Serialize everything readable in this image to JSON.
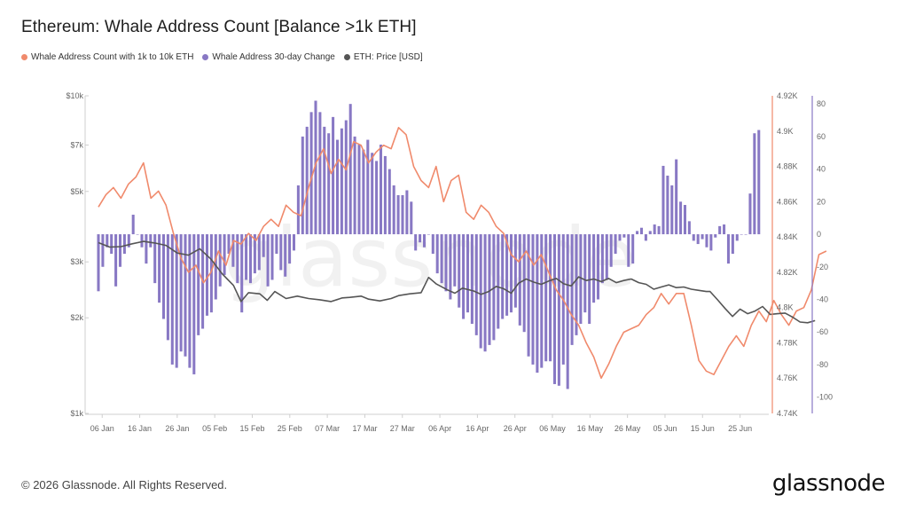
{
  "header": {
    "title": "Ethereum: Whale Address Count [Balance >1k ETH]"
  },
  "legend": [
    {
      "label": "Whale Address Count with 1k to 10k ETH",
      "color": "#f08a6c"
    },
    {
      "label": "Whale Address 30-day Change",
      "color": "#8878c4"
    },
    {
      "label": "ETH: Price [USD]",
      "color": "#555555"
    }
  ],
  "watermark": "glassnode",
  "footer": {
    "copyright": "© 2026 Glassnode. All Rights Reserved.",
    "brand": "glassnode"
  },
  "colors": {
    "whale_count": "#f08a6c",
    "change_bars": "#8878c4",
    "price": "#555555",
    "right_axis_line": "#f08a6c",
    "far_right_axis_line": "#8878c4"
  },
  "chart_data": {
    "type": "line",
    "x_ticks": [
      "06 Jan",
      "16 Jan",
      "26 Jan",
      "05 Feb",
      "15 Feb",
      "25 Feb",
      "07 Mar",
      "17 Mar",
      "27 Mar",
      "06 Apr",
      "16 Apr",
      "26 Apr",
      "06 May",
      "16 May",
      "26 May",
      "05 Jun",
      "15 Jun",
      "25 Jun"
    ],
    "x_start": "2026-01-05",
    "days": 177,
    "axes": {
      "price": {
        "scale": "log",
        "range": [
          1000,
          10000
        ],
        "ticks": [
          "$1k",
          "$2k",
          "$3k",
          "$5k",
          "$7k",
          "$10k"
        ],
        "tick_values": [
          1000,
          2000,
          3000,
          5000,
          7000,
          10000
        ]
      },
      "whale_count": {
        "range": [
          4740,
          4920
        ],
        "ticks": [
          "4.74K",
          "4.76K",
          "4.78K",
          "4.8K",
          "4.82K",
          "4.84K",
          "4.86K",
          "4.88K",
          "4.9K",
          "4.92K"
        ],
        "tick_values": [
          4740,
          4760,
          4780,
          4800,
          4820,
          4840,
          4860,
          4880,
          4900,
          4920
        ]
      },
      "change": {
        "range": [
          -110,
          85
        ],
        "ticks": [
          "80",
          "60",
          "40",
          "20",
          "0",
          "-20",
          "-40",
          "-60",
          "-80",
          "-100"
        ],
        "tick_values": [
          80,
          60,
          40,
          20,
          0,
          -20,
          -40,
          -60,
          -80,
          -100
        ]
      }
    },
    "series": [
      {
        "name": "Whale Address Count with 1k to 10k ETH",
        "axis": "whale_count",
        "points": [
          [
            0,
            4857
          ],
          [
            2,
            4864
          ],
          [
            4,
            4868
          ],
          [
            6,
            4862
          ],
          [
            8,
            4870
          ],
          [
            10,
            4874
          ],
          [
            12,
            4882
          ],
          [
            14,
            4862
          ],
          [
            16,
            4866
          ],
          [
            18,
            4858
          ],
          [
            20,
            4842
          ],
          [
            22,
            4828
          ],
          [
            24,
            4820
          ],
          [
            26,
            4824
          ],
          [
            28,
            4814
          ],
          [
            30,
            4820
          ],
          [
            32,
            4832
          ],
          [
            34,
            4824
          ],
          [
            36,
            4838
          ],
          [
            38,
            4836
          ],
          [
            40,
            4842
          ],
          [
            42,
            4838
          ],
          [
            44,
            4846
          ],
          [
            46,
            4850
          ],
          [
            48,
            4846
          ],
          [
            50,
            4858
          ],
          [
            52,
            4854
          ],
          [
            54,
            4852
          ],
          [
            56,
            4868
          ],
          [
            58,
            4882
          ],
          [
            60,
            4890
          ],
          [
            62,
            4876
          ],
          [
            64,
            4884
          ],
          [
            66,
            4878
          ],
          [
            68,
            4894
          ],
          [
            70,
            4892
          ],
          [
            72,
            4882
          ],
          [
            74,
            4888
          ],
          [
            76,
            4892
          ],
          [
            78,
            4890
          ],
          [
            80,
            4902
          ],
          [
            82,
            4898
          ],
          [
            84,
            4880
          ],
          [
            86,
            4872
          ],
          [
            88,
            4868
          ],
          [
            90,
            4880
          ],
          [
            92,
            4860
          ],
          [
            94,
            4872
          ],
          [
            96,
            4875
          ],
          [
            98,
            4854
          ],
          [
            100,
            4850
          ],
          [
            102,
            4858
          ],
          [
            104,
            4854
          ],
          [
            106,
            4846
          ],
          [
            108,
            4842
          ],
          [
            110,
            4830
          ],
          [
            112,
            4826
          ],
          [
            114,
            4832
          ],
          [
            116,
            4824
          ],
          [
            118,
            4830
          ],
          [
            120,
            4820
          ],
          [
            122,
            4810
          ],
          [
            124,
            4804
          ],
          [
            126,
            4796
          ],
          [
            128,
            4790
          ],
          [
            130,
            4780
          ],
          [
            132,
            4772
          ],
          [
            134,
            4760
          ],
          [
            136,
            4768
          ],
          [
            138,
            4778
          ],
          [
            140,
            4786
          ],
          [
            142,
            4788
          ],
          [
            144,
            4790
          ],
          [
            146,
            4796
          ],
          [
            148,
            4800
          ],
          [
            150,
            4808
          ],
          [
            152,
            4802
          ],
          [
            154,
            4808
          ],
          [
            156,
            4808
          ],
          [
            158,
            4790
          ],
          [
            160,
            4770
          ],
          [
            162,
            4764
          ],
          [
            164,
            4762
          ],
          [
            166,
            4770
          ],
          [
            168,
            4778
          ],
          [
            170,
            4784
          ],
          [
            172,
            4778
          ],
          [
            174,
            4790
          ],
          [
            176,
            4798
          ],
          [
            178,
            4792
          ],
          [
            180,
            4804
          ],
          [
            182,
            4796
          ],
          [
            184,
            4790
          ],
          [
            186,
            4798
          ],
          [
            188,
            4800
          ],
          [
            190,
            4810
          ],
          [
            192,
            4830
          ],
          [
            194,
            4832
          ]
        ]
      },
      {
        "name": "Whale Address 30-day Change",
        "axis": "change",
        "type": "bar",
        "values": [
          -35,
          -20,
          -8,
          -12,
          -32,
          -20,
          -12,
          -8,
          12,
          0,
          -8,
          -18,
          -8,
          -30,
          -42,
          -52,
          -65,
          -80,
          -82,
          -72,
          -75,
          -82,
          -86,
          -62,
          -58,
          -50,
          -48,
          -40,
          -32,
          -25,
          -12,
          -20,
          -30,
          -48,
          -28,
          -30,
          -24,
          -22,
          -14,
          -32,
          -28,
          -12,
          -22,
          -26,
          -18,
          -10,
          30,
          60,
          66,
          75,
          82,
          75,
          66,
          62,
          72,
          58,
          65,
          70,
          80,
          60,
          55,
          52,
          58,
          50,
          45,
          55,
          48,
          40,
          30,
          24,
          24,
          27,
          20,
          -10,
          -5,
          -8,
          0,
          -12,
          -24,
          -30,
          -35,
          -40,
          -32,
          -45,
          -52,
          -48,
          -55,
          -62,
          -70,
          -72,
          -68,
          -65,
          -58,
          -52,
          -50,
          -48,
          -45,
          -56,
          -60,
          -75,
          -80,
          -85,
          -82,
          -78,
          -78,
          -92,
          -93,
          -80,
          -95,
          -68,
          -62,
          -55,
          -48,
          -55,
          -42,
          -40,
          -30,
          -28,
          -20,
          -12,
          -4,
          -2,
          -20,
          -18,
          2,
          4,
          -4,
          2,
          6,
          5,
          42,
          36,
          30,
          46,
          20,
          18,
          8,
          -4,
          -6,
          -3,
          -8,
          -10,
          -2,
          5,
          6,
          -18,
          -12,
          -4,
          0,
          0,
          25,
          62,
          64
        ],
        "series_note": ""
      },
      {
        "name": "ETH: Price [USD]",
        "axis": "price",
        "points": [
          [
            0,
            3450
          ],
          [
            3,
            3340
          ],
          [
            6,
            3350
          ],
          [
            9,
            3420
          ],
          [
            12,
            3480
          ],
          [
            15,
            3440
          ],
          [
            18,
            3380
          ],
          [
            21,
            3200
          ],
          [
            24,
            3150
          ],
          [
            27,
            3300
          ],
          [
            30,
            3060
          ],
          [
            33,
            2750
          ],
          [
            36,
            2530
          ],
          [
            38,
            2250
          ],
          [
            40,
            2400
          ],
          [
            43,
            2380
          ],
          [
            45,
            2270
          ],
          [
            47,
            2420
          ],
          [
            50,
            2300
          ],
          [
            53,
            2340
          ],
          [
            56,
            2300
          ],
          [
            59,
            2280
          ],
          [
            62,
            2250
          ],
          [
            65,
            2310
          ],
          [
            67,
            2320
          ],
          [
            70,
            2340
          ],
          [
            72,
            2290
          ],
          [
            75,
            2260
          ],
          [
            78,
            2300
          ],
          [
            80,
            2350
          ],
          [
            83,
            2380
          ],
          [
            86,
            2400
          ],
          [
            88,
            2680
          ],
          [
            90,
            2560
          ],
          [
            93,
            2450
          ],
          [
            95,
            2390
          ],
          [
            97,
            2480
          ],
          [
            100,
            2430
          ],
          [
            102,
            2370
          ],
          [
            104,
            2420
          ],
          [
            106,
            2510
          ],
          [
            108,
            2470
          ],
          [
            110,
            2390
          ],
          [
            112,
            2570
          ],
          [
            114,
            2650
          ],
          [
            116,
            2590
          ],
          [
            118,
            2550
          ],
          [
            120,
            2610
          ],
          [
            122,
            2660
          ],
          [
            124,
            2560
          ],
          [
            126,
            2520
          ],
          [
            128,
            2690
          ],
          [
            130,
            2620
          ],
          [
            132,
            2650
          ],
          [
            134,
            2600
          ],
          [
            136,
            2660
          ],
          [
            138,
            2580
          ],
          [
            140,
            2620
          ],
          [
            142,
            2650
          ],
          [
            144,
            2580
          ],
          [
            146,
            2550
          ],
          [
            148,
            2460
          ],
          [
            150,
            2500
          ],
          [
            152,
            2540
          ],
          [
            154,
            2490
          ],
          [
            156,
            2500
          ],
          [
            158,
            2460
          ],
          [
            160,
            2440
          ],
          [
            162,
            2420
          ],
          [
            163,
            2420
          ],
          [
            165,
            2280
          ],
          [
            167,
            2140
          ],
          [
            169,
            2020
          ],
          [
            171,
            2130
          ],
          [
            173,
            2060
          ],
          [
            175,
            2100
          ],
          [
            177,
            2170
          ],
          [
            179,
            2050
          ],
          [
            181,
            2060
          ],
          [
            183,
            2070
          ],
          [
            185,
            2010
          ],
          [
            187,
            1940
          ],
          [
            189,
            1930
          ],
          [
            191,
            1960
          ]
        ]
      }
    ]
  }
}
